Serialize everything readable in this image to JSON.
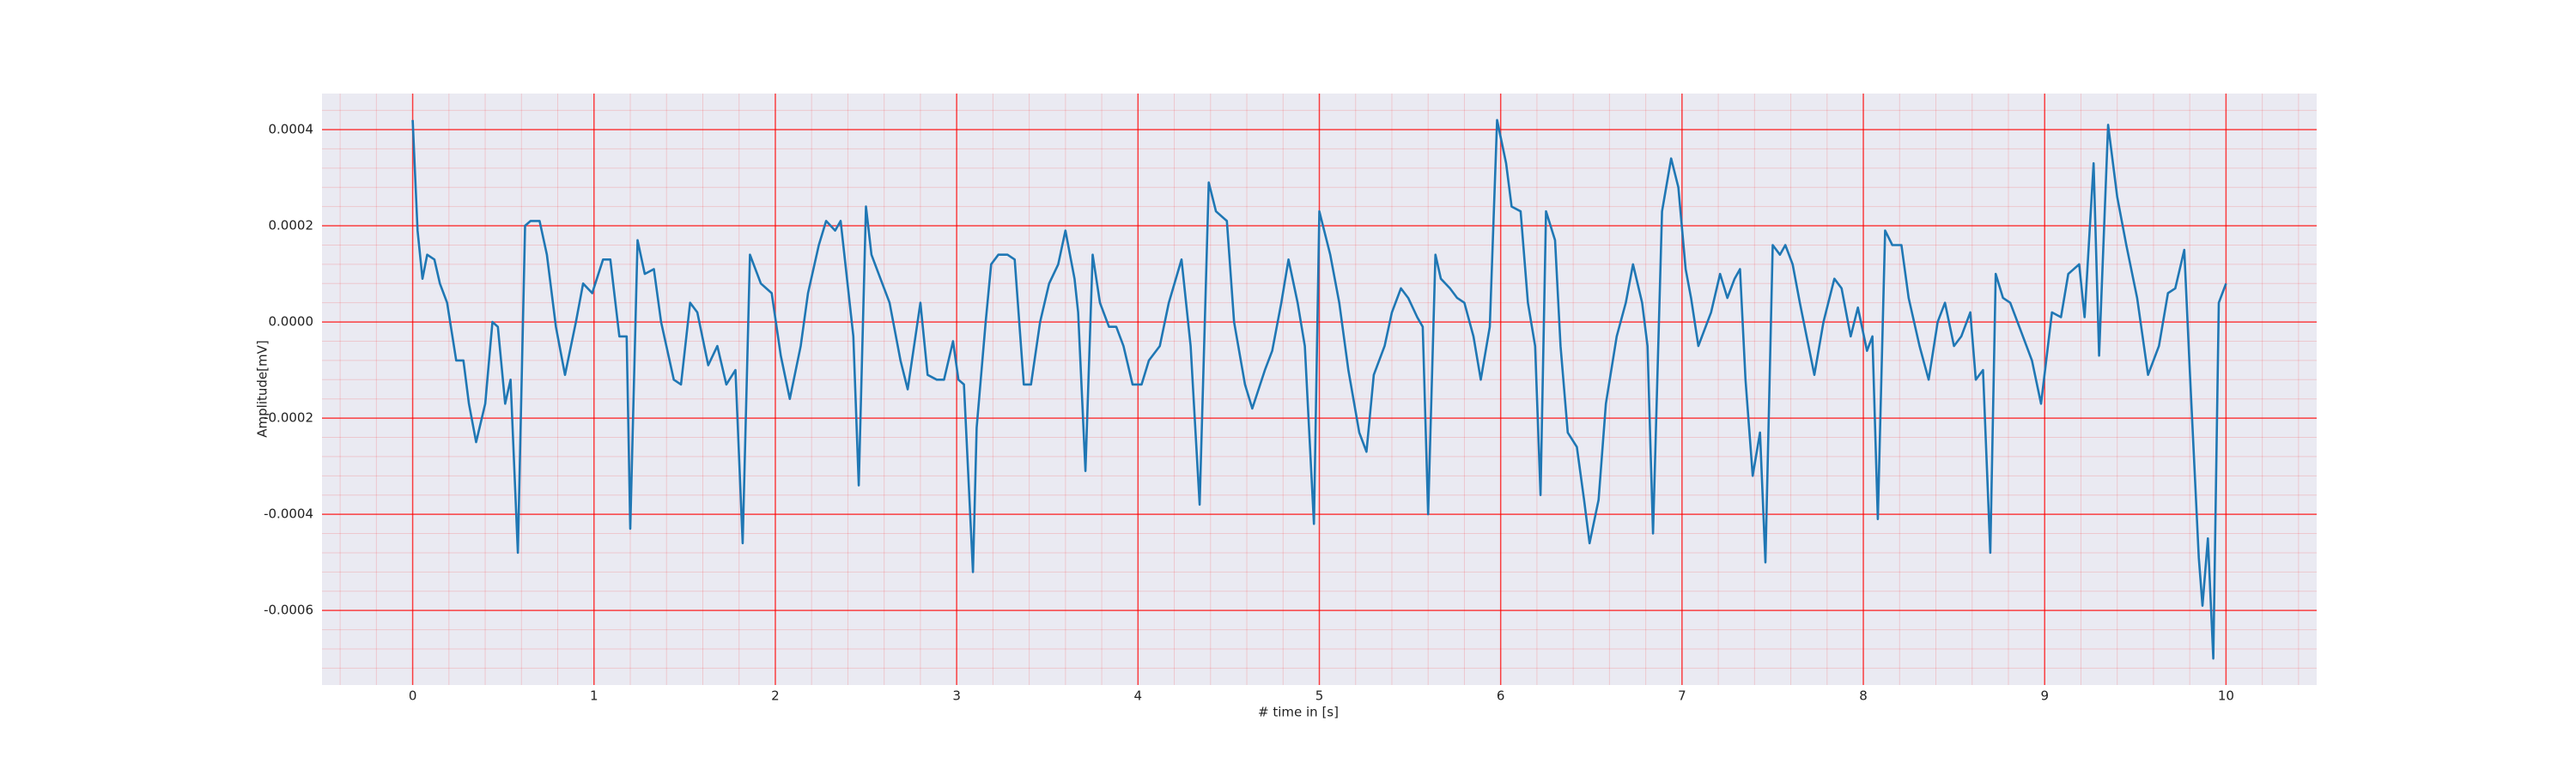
{
  "chart_data": {
    "type": "line",
    "xlabel": "# time in [s]",
    "ylabel": "Amplitude[mV]",
    "x": [
      0,
      0.027,
      0.054,
      0.08,
      0.12,
      0.15,
      0.19,
      0.24,
      0.28,
      0.31,
      0.35,
      0.4,
      0.44,
      0.47,
      0.51,
      0.54,
      0.58,
      0.62,
      0.65,
      0.7,
      0.74,
      0.79,
      0.84,
      0.9,
      0.94,
      0.99,
      1.05,
      1.09,
      1.14,
      1.18,
      1.2,
      1.24,
      1.28,
      1.33,
      1.37,
      1.44,
      1.48,
      1.53,
      1.57,
      1.63,
      1.68,
      1.73,
      1.78,
      1.82,
      1.86,
      1.92,
      1.98,
      2.03,
      2.08,
      2.14,
      2.18,
      2.24,
      2.28,
      2.33,
      2.36,
      2.41,
      2.43,
      2.46,
      2.5,
      2.53,
      2.58,
      2.63,
      2.69,
      2.73,
      2.8,
      2.84,
      2.89,
      2.93,
      2.98,
      3.01,
      3.04,
      3.09,
      3.11,
      3.16,
      3.19,
      3.23,
      3.28,
      3.32,
      3.37,
      3.41,
      3.46,
      3.51,
      3.56,
      3.6,
      3.65,
      3.67,
      3.71,
      3.75,
      3.79,
      3.84,
      3.88,
      3.92,
      3.97,
      4.02,
      4.06,
      4.12,
      4.17,
      4.24,
      4.29,
      4.34,
      4.39,
      4.43,
      4.49,
      4.53,
      4.59,
      4.63,
      4.7,
      4.74,
      4.79,
      4.83,
      4.88,
      4.92,
      4.97,
      5.0,
      5.06,
      5.11,
      5.16,
      5.22,
      5.26,
      5.3,
      5.36,
      5.4,
      5.45,
      5.49,
      5.54,
      5.57,
      5.6,
      5.64,
      5.67,
      5.72,
      5.76,
      5.8,
      5.85,
      5.89,
      5.94,
      5.98,
      6.03,
      6.06,
      6.11,
      6.15,
      6.19,
      6.22,
      6.25,
      6.3,
      6.33,
      6.37,
      6.42,
      6.46,
      6.49,
      6.54,
      6.58,
      6.64,
      6.69,
      6.73,
      6.78,
      6.81,
      6.84,
      6.89,
      6.94,
      6.98,
      7.02,
      7.05,
      7.09,
      7.16,
      7.21,
      7.25,
      7.29,
      7.32,
      7.35,
      7.39,
      7.43,
      7.46,
      7.5,
      7.54,
      7.57,
      7.61,
      7.65,
      7.73,
      7.78,
      7.84,
      7.88,
      7.93,
      7.97,
      8.02,
      8.05,
      8.08,
      8.12,
      8.16,
      8.21,
      8.25,
      8.31,
      8.36,
      8.41,
      8.45,
      8.5,
      8.54,
      8.59,
      8.62,
      8.66,
      8.7,
      8.73,
      8.77,
      8.81,
      8.88,
      8.93,
      8.98,
      9.04,
      9.09,
      9.13,
      9.19,
      9.22,
      9.27,
      9.3,
      9.35,
      9.4,
      9.45,
      9.51,
      9.57,
      9.63,
      9.68,
      9.72,
      9.77,
      9.8,
      9.85,
      9.87,
      9.9,
      9.93,
      9.96,
      10.0
    ],
    "series": [
      {
        "color": "#1f77b4",
        "values": [
          0.00042,
          0.00019,
          9e-05,
          0.00014,
          0.00013,
          8e-05,
          4e-05,
          -8e-05,
          -8e-05,
          -0.00017,
          -0.00025,
          -0.00017,
          0,
          -1e-05,
          -0.00017,
          -0.00012,
          -0.00048,
          0.0002,
          0.00021,
          0.00021,
          0.00014,
          -1e-05,
          -0.00011,
          0,
          8e-05,
          6e-05,
          0.00013,
          0.00013,
          -3e-05,
          -3e-05,
          -0.00043,
          0.00017,
          0.0001,
          0.00011,
          0,
          -0.00012,
          -0.00013,
          4e-05,
          2e-05,
          -9e-05,
          -5e-05,
          -0.00013,
          -0.0001,
          -0.00046,
          0.00014,
          8e-05,
          6e-05,
          -7e-05,
          -0.00016,
          -5e-05,
          6e-05,
          0.00016,
          0.00021,
          0.00019,
          0.00021,
          4e-05,
          -3e-05,
          -0.00034,
          0.00024,
          0.00014,
          9e-05,
          4e-05,
          -8e-05,
          -0.00014,
          4e-05,
          -0.00011,
          -0.00012,
          -0.00012,
          -4e-05,
          -0.00012,
          -0.00013,
          -0.00052,
          -0.00022,
          0,
          0.00012,
          0.00014,
          0.00014,
          0.00013,
          -0.00013,
          -0.00013,
          0,
          8e-05,
          0.00012,
          0.00019,
          9e-05,
          2e-05,
          -0.00031,
          0.00014,
          4e-05,
          -1e-05,
          -1e-05,
          -5e-05,
          -0.00013,
          -0.00013,
          -8e-05,
          -5e-05,
          4e-05,
          0.00013,
          -5e-05,
          -0.00038,
          0.00029,
          0.00023,
          0.00021,
          0,
          -0.00013,
          -0.00018,
          -0.0001,
          -6e-05,
          4e-05,
          0.00013,
          4e-05,
          -5e-05,
          -0.00042,
          0.00023,
          0.00014,
          4e-05,
          -0.0001,
          -0.00023,
          -0.00027,
          -0.00011,
          -5e-05,
          2e-05,
          7e-05,
          5e-05,
          1e-05,
          -1e-05,
          -0.0004,
          0.00014,
          9e-05,
          7e-05,
          5e-05,
          4e-05,
          -3e-05,
          -0.00012,
          -1e-05,
          0.00042,
          0.00033,
          0.00024,
          0.00023,
          4e-05,
          -5e-05,
          -0.00036,
          0.00023,
          0.00017,
          -5e-05,
          -0.00023,
          -0.00026,
          -0.00037,
          -0.00046,
          -0.00037,
          -0.00017,
          -3e-05,
          4e-05,
          0.00012,
          4e-05,
          -5e-05,
          -0.00044,
          0.00023,
          0.00034,
          0.00028,
          0.00011,
          5e-05,
          -5e-05,
          2e-05,
          0.0001,
          5e-05,
          9e-05,
          0.00011,
          -0.00012,
          -0.00032,
          -0.00023,
          -0.0005,
          0.00016,
          0.00014,
          0.00016,
          0.00012,
          4e-05,
          -0.00011,
          0,
          9e-05,
          7e-05,
          -3e-05,
          3e-05,
          -6e-05,
          -3e-05,
          -0.00041,
          0.00019,
          0.00016,
          0.00016,
          5e-05,
          -5e-05,
          -0.00012,
          0,
          4e-05,
          -5e-05,
          -3e-05,
          2e-05,
          -0.00012,
          -0.0001,
          -0.00048,
          0.0001,
          5e-05,
          4e-05,
          -3e-05,
          -8e-05,
          -0.00017,
          2e-05,
          1e-05,
          0.0001,
          0.00012,
          1e-05,
          0.00033,
          -7e-05,
          0.00041,
          0.00026,
          0.00016,
          5e-05,
          -0.00011,
          -5e-05,
          6e-05,
          7e-05,
          0.00015,
          -0.0001,
          -0.00049,
          -0.00059,
          -0.00045,
          -0.0007,
          4e-05,
          8e-05
        ]
      }
    ],
    "xlim": [
      -0.5,
      10.5
    ],
    "ylim": [
      -0.000755,
      0.000475
    ],
    "xticks": [
      0,
      1,
      2,
      3,
      4,
      5,
      6,
      7,
      8,
      9,
      10
    ],
    "yticks": [
      -0.0006,
      -0.0004,
      -0.0002,
      {
        "value": 0,
        "label": "0.0000"
      },
      0.0002,
      0.0004
    ],
    "grid": true,
    "grid_color": "#ff0000",
    "background": "#eaeaf2"
  }
}
